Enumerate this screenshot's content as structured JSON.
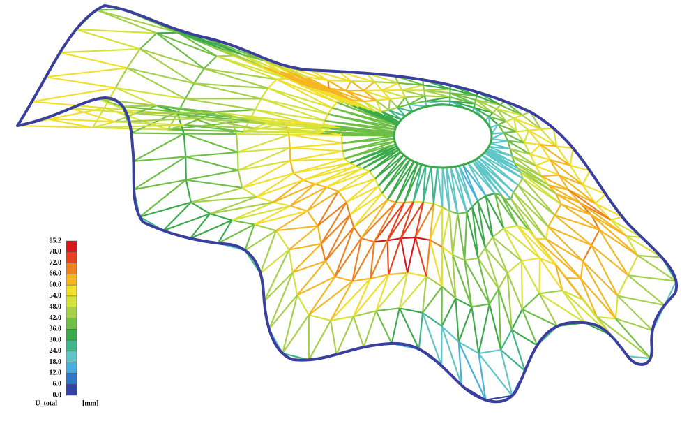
{
  "legend": {
    "labels": [
      "85.2",
      "78.0",
      "72.0",
      "66.0",
      "60.0",
      "54.0",
      "48.0",
      "42.0",
      "36.0",
      "30.0",
      "24.0",
      "18.0",
      "12.0",
      "6.0",
      "0.0"
    ],
    "colors": [
      "#d7191c",
      "#e8411e",
      "#f07f1f",
      "#f5b622",
      "#f0e02b",
      "#d4e33c",
      "#a6d04a",
      "#6dbf45",
      "#3aaa4a",
      "#3fb68a",
      "#5fc6c7",
      "#45b0e0",
      "#2f78c8",
      "#3343a8"
    ],
    "quantity": "U_total",
    "unit": "[mm]"
  }
}
